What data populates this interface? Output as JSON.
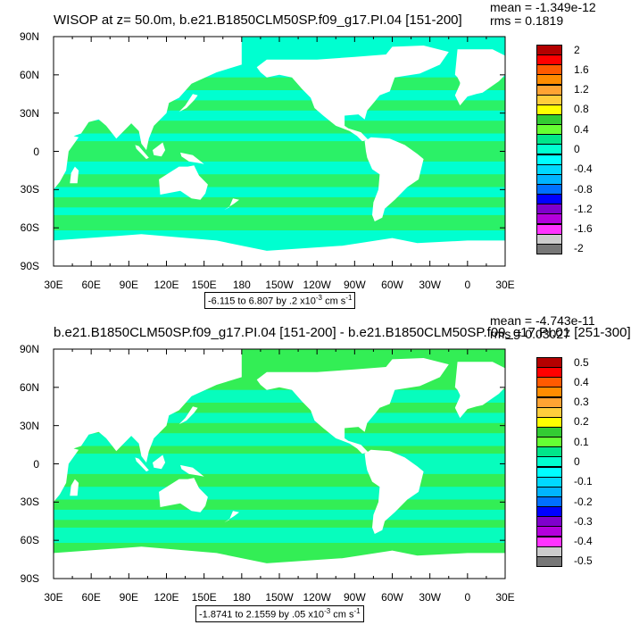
{
  "chart_data": [
    {
      "type": "heatmap",
      "title": "WISOP at z=  50.0m, b.e21.B1850CLM50SP.f09_g17.PI.04 [151-200]",
      "stats": {
        "mean": "mean = -1.349e-12",
        "rms": "rms = 0.1819"
      },
      "x_ticks": [
        "30E",
        "60E",
        "90E",
        "120E",
        "150E",
        "180",
        "150W",
        "120W",
        "90W",
        "60W",
        "30W",
        "0",
        "30E"
      ],
      "y_ticks": [
        "90N",
        "60N",
        "30N",
        "0",
        "30S",
        "60S",
        "90S"
      ],
      "xlim": [
        30,
        390
      ],
      "ylim": [
        -90,
        90
      ],
      "range_label": "-6.115 to 6.807 by .2 x10",
      "range_exp": "-3",
      "range_units": " cm s",
      "range_units_exp": "-1",
      "colorbar": {
        "labels": [
          "2",
          "1.6",
          "1.2",
          "0.8",
          "0.4",
          "0",
          "-0.4",
          "-0.8",
          "-1.2",
          "-1.6",
          "-2"
        ],
        "colors": [
          "#b40000",
          "#ff0000",
          "#ff5a00",
          "#ff8c00",
          "#ffa333",
          "#ffcd3c",
          "#ffff00",
          "#33cc33",
          "#66ff33",
          "#00e68a",
          "#00ffd0",
          "#00ffff",
          "#00d9ff",
          "#00b4ff",
          "#0070ff",
          "#0000ff",
          "#7f00cc",
          "#b400dc",
          "#ff33ff",
          "#cccccc",
          "#777777"
        ]
      },
      "background_color": "#00ffd0",
      "secondary_color": "#33ee55",
      "land_color": "#ffffff"
    },
    {
      "type": "heatmap",
      "title": "b.e21.B1850CLM50SP.f09_g17.PI.04 [151-200] - b.e21.B1850CLM50SP.f09_g17.PI.01 [251-300]",
      "stats": {
        "mean": "mean = -4.743e-11",
        "rms": "rms = 0.03027"
      },
      "x_ticks": [
        "30E",
        "60E",
        "90E",
        "120E",
        "150E",
        "180",
        "150W",
        "120W",
        "90W",
        "60W",
        "30W",
        "0",
        "30E"
      ],
      "y_ticks": [
        "90N",
        "60N",
        "30N",
        "0",
        "30S",
        "60S",
        "90S"
      ],
      "xlim": [
        30,
        390
      ],
      "ylim": [
        -90,
        90
      ],
      "range_label": "-1.8741 to 2.1559 by .05 x10",
      "range_exp": "-3",
      "range_units": " cm s",
      "range_units_exp": "-1",
      "colorbar": {
        "labels": [
          "0.5",
          "0.4",
          "0.3",
          "0.2",
          "0.1",
          "0",
          "-0.1",
          "-0.2",
          "-0.3",
          "-0.4",
          "-0.5"
        ],
        "colors": [
          "#b40000",
          "#ff0000",
          "#ff5a00",
          "#ff8c00",
          "#ffa333",
          "#ffcd3c",
          "#ffff00",
          "#33cc33",
          "#66ff33",
          "#00e68a",
          "#00ffd0",
          "#00ffff",
          "#00d9ff",
          "#00b4ff",
          "#0070ff",
          "#0000ff",
          "#7f00cc",
          "#b400dc",
          "#ff33ff",
          "#cccccc",
          "#777777"
        ]
      },
      "background_color": "#33ee55",
      "secondary_color": "#00ffd0",
      "land_color": "#ffffff"
    }
  ]
}
